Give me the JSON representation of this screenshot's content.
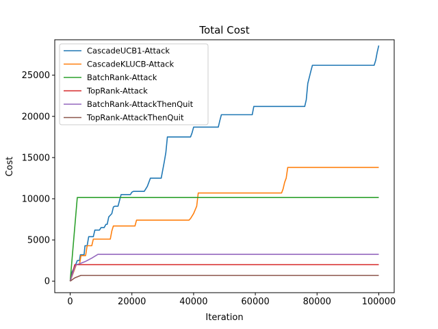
{
  "chart_data": {
    "type": "line",
    "title": "Total Cost",
    "xlabel": "Iteration",
    "ylabel": "Cost",
    "xlim": [
      -5000,
      105000
    ],
    "ylim": [
      -1400,
      29300
    ],
    "xticks": [
      0,
      20000,
      40000,
      60000,
      80000,
      100000
    ],
    "xtick_labels": [
      "0",
      "20000",
      "40000",
      "60000",
      "80000",
      "100000"
    ],
    "yticks": [
      0,
      5000,
      10000,
      15000,
      20000,
      25000
    ],
    "ytick_labels": [
      "0",
      "5000",
      "10000",
      "15000",
      "20000",
      "25000"
    ],
    "grid": false,
    "legend_position": "top-left",
    "series": [
      {
        "name": "CascadeUCB1-Attack",
        "color": "#1f77b4",
        "x": [
          0,
          500,
          1000,
          1500,
          2000,
          2300,
          3000,
          3300,
          4500,
          4800,
          5500,
          6000,
          7500,
          8000,
          9500,
          10000,
          11000,
          11600,
          12000,
          12500,
          13500,
          14000,
          14500,
          15500,
          16000,
          16500,
          19500,
          20000,
          20500,
          24000,
          25000,
          25500,
          26000,
          29500,
          30000,
          30500,
          31000,
          31500,
          39000,
          39500,
          40000,
          40500,
          48000,
          48500,
          49000,
          49500,
          59000,
          59500,
          60000,
          76000,
          76500,
          77000,
          78000,
          78500,
          79000,
          98500,
          99000,
          99500,
          100000
        ],
        "y": [
          0,
          1000,
          1400,
          1800,
          2200,
          2500,
          2500,
          3200,
          3200,
          4300,
          4300,
          5400,
          5400,
          6200,
          6200,
          6500,
          6500,
          6900,
          6900,
          7800,
          8200,
          9000,
          9100,
          9100,
          9800,
          10500,
          10500,
          10800,
          10900,
          10900,
          11500,
          12000,
          12500,
          12500,
          13500,
          14500,
          15600,
          17500,
          17500,
          18000,
          18700,
          18700,
          18700,
          19500,
          20200,
          20200,
          20200,
          21200,
          21200,
          21200,
          22000,
          24000,
          25500,
          26200,
          26200,
          26200,
          26800,
          27800,
          28600
        ]
      },
      {
        "name": "CascadeKLUCB-Attack",
        "color": "#ff7f0e",
        "x": [
          0,
          1000,
          2000,
          3000,
          3500,
          4000,
          5000,
          5500,
          6000,
          7000,
          7500,
          8000,
          13000,
          13500,
          14000,
          15000,
          21000,
          21500,
          22000,
          38500,
          39000,
          40000,
          41000,
          41500,
          42000,
          68500,
          69000,
          69500,
          70000,
          70500,
          71000,
          100000
        ],
        "y": [
          0,
          1000,
          2000,
          2000,
          3100,
          3100,
          3100,
          4300,
          4300,
          4300,
          5100,
          5100,
          5100,
          6100,
          6700,
          6700,
          6700,
          7400,
          7400,
          7400,
          7600,
          8200,
          9100,
          10700,
          10700,
          10700,
          11200,
          12000,
          12500,
          13800,
          13800,
          13800
        ]
      },
      {
        "name": "BatchRank-Attack",
        "color": "#2ca02c",
        "x": [
          0,
          2300,
          100000
        ],
        "y": [
          0,
          10150,
          10150
        ]
      },
      {
        "name": "TopRank-Attack",
        "color": "#d62728",
        "x": [
          0,
          1500,
          100000
        ],
        "y": [
          0,
          2000,
          2000
        ]
      },
      {
        "name": "BatchRank-AttackThenQuit",
        "color": "#9467bd",
        "x": [
          0,
          1500,
          2000,
          3000,
          5000,
          7000,
          9000,
          100000
        ],
        "y": [
          0,
          1700,
          2000,
          2100,
          2400,
          2800,
          3250,
          3250
        ]
      },
      {
        "name": "TopRank-AttackThenQuit",
        "color": "#8c564b",
        "x": [
          0,
          1500,
          3500,
          100000
        ],
        "y": [
          0,
          400,
          700,
          700
        ]
      }
    ]
  }
}
